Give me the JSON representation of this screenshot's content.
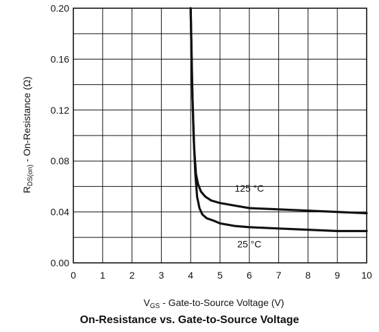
{
  "chart_data": {
    "type": "line",
    "title": "On-Resistance vs. Gate-to-Source Voltage",
    "xlabel": {
      "main": "V",
      "sub": "GS",
      "rest": " - Gate-to-Source Voltage (V)"
    },
    "ylabel": {
      "main": "R",
      "sub": "DS(on)",
      "rest": " - On-Resistance (Ω)"
    },
    "xlim": [
      0,
      10
    ],
    "ylim": [
      0,
      0.2
    ],
    "x_ticks": [
      "0",
      "1",
      "2",
      "3",
      "4",
      "5",
      "6",
      "7",
      "8",
      "9",
      "10"
    ],
    "y_ticks": [
      "0.00",
      "0.04",
      "0.08",
      "0.12",
      "0.16",
      "0.20"
    ],
    "grid": true,
    "series": [
      {
        "name": "125 °C",
        "x": [
          4.0,
          4.06,
          4.12,
          4.18,
          4.25,
          4.35,
          4.5,
          4.7,
          5.0,
          5.5,
          6.0,
          7.0,
          8.0,
          9.0,
          10.0
        ],
        "y": [
          0.2,
          0.13,
          0.09,
          0.07,
          0.062,
          0.056,
          0.052,
          0.049,
          0.047,
          0.045,
          0.043,
          0.042,
          0.041,
          0.04,
          0.039
        ]
      },
      {
        "name": "25 °C",
        "x": [
          4.0,
          4.05,
          4.1,
          4.16,
          4.22,
          4.3,
          4.4,
          4.55,
          4.8,
          5.0,
          5.5,
          6.0,
          7.0,
          8.0,
          9.0,
          10.0
        ],
        "y": [
          0.2,
          0.14,
          0.1,
          0.07,
          0.052,
          0.043,
          0.038,
          0.035,
          0.033,
          0.031,
          0.029,
          0.028,
          0.027,
          0.026,
          0.025,
          0.025
        ]
      }
    ],
    "annotations": [
      {
        "text": "125 °C",
        "x": 6.0,
        "y": 0.056
      },
      {
        "text": "25 °C",
        "x": 6.0,
        "y": 0.012
      }
    ]
  }
}
